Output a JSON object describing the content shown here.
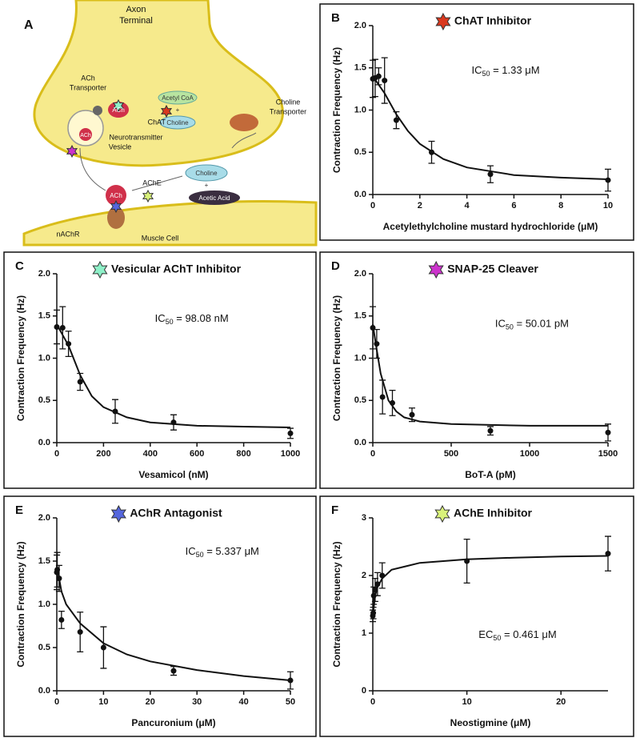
{
  "diagram": {
    "panel_label": "A",
    "labels": [
      "Axon",
      "Terminal",
      "ACh",
      "Transporter",
      "ACh",
      "Acetyl CoA",
      "+",
      "ChAT",
      "Choline",
      "Choline",
      "Transporter",
      "ACh",
      "Neurotransmitter",
      "Vesicle",
      "AChE",
      "Choline",
      "+",
      "Acetic Acid",
      "ACh",
      "nAChR",
      "Muscle Cell"
    ]
  },
  "chart_data": [
    {
      "type": "scatter",
      "panel": "B",
      "title": "ChAT Inhibitor",
      "marker_color": "#d9381e",
      "annotation": {
        "prefix": "IC",
        "sub": "50",
        "suffix": " = 1.33 μM"
      },
      "x_label": "Acetylethylcholine mustard hydrochloride (μM)",
      "y_label": "Contraction Frequency (Hz)",
      "x": [
        0,
        0.1,
        0.25,
        0.5,
        1,
        2.5,
        5,
        10
      ],
      "y": [
        1.37,
        1.38,
        1.4,
        1.35,
        0.88,
        0.5,
        0.24,
        0.17
      ],
      "err": [
        0.22,
        0.22,
        0.1,
        0.27,
        0.1,
        0.13,
        0.1,
        0.13
      ],
      "fit": {
        "x": [
          0,
          0.5,
          1,
          1.5,
          2,
          3,
          4,
          6,
          8,
          10
        ],
        "y": [
          1.4,
          1.2,
          0.95,
          0.75,
          0.6,
          0.42,
          0.32,
          0.23,
          0.2,
          0.18
        ]
      },
      "xlim": [
        0,
        10
      ],
      "xticks": [
        0,
        2,
        4,
        6,
        8,
        10
      ],
      "ylim": [
        0,
        2
      ],
      "yticks": [
        {
          "value": 0,
          "label": "0.0"
        },
        0.5,
        {
          "value": 1,
          "label": "1.0"
        },
        1.5,
        {
          "value": 2,
          "label": "2.0"
        }
      ]
    },
    {
      "type": "scatter",
      "panel": "C",
      "title": "Vesicular AChT Inhibitor",
      "marker_color": "#8ef0c8",
      "annotation": {
        "prefix": "IC",
        "sub": "50",
        "suffix": " = 98.08 nM"
      },
      "x_label": "Vesamicol (nM)",
      "y_label": "Contraction Frequency (Hz)",
      "x": [
        0,
        25,
        50,
        100,
        250,
        500,
        1000
      ],
      "y": [
        1.37,
        1.36,
        1.17,
        0.72,
        0.37,
        0.24,
        0.11
      ],
      "err": [
        0.2,
        0.25,
        0.15,
        0.1,
        0.14,
        0.09,
        0.06
      ],
      "fit": {
        "x": [
          0,
          50,
          100,
          150,
          200,
          300,
          400,
          600,
          800,
          1000
        ],
        "y": [
          1.4,
          1.15,
          0.8,
          0.55,
          0.42,
          0.3,
          0.24,
          0.2,
          0.19,
          0.18
        ]
      },
      "xlim": [
        0,
        1000
      ],
      "xticks": [
        0,
        200,
        400,
        600,
        800,
        1000
      ],
      "ylim": [
        0,
        2
      ],
      "yticks": [
        {
          "value": 0,
          "label": "0.0"
        },
        0.5,
        {
          "value": 1,
          "label": "1.0"
        },
        1.5,
        {
          "value": 2,
          "label": "2.0"
        }
      ]
    },
    {
      "type": "scatter",
      "panel": "D",
      "title": "SNAP-25 Cleaver",
      "marker_color": "#cc33cc",
      "annotation": {
        "prefix": "IC",
        "sub": "50",
        "suffix": " = 50.01 pM"
      },
      "x_label": "BoT-A (pM)",
      "y_label": "Contraction Frequency (Hz)",
      "x": [
        0,
        25,
        62,
        125,
        250,
        750,
        1500
      ],
      "y": [
        1.36,
        1.17,
        0.54,
        0.47,
        0.33,
        0.14,
        0.12
      ],
      "err": [
        0.25,
        0.17,
        0.2,
        0.15,
        0.08,
        0.05,
        0.1
      ],
      "fit": {
        "x": [
          0,
          25,
          50,
          100,
          150,
          200,
          300,
          500,
          1000,
          1500
        ],
        "y": [
          1.4,
          1.1,
          0.82,
          0.5,
          0.37,
          0.3,
          0.25,
          0.22,
          0.2,
          0.2
        ]
      },
      "xlim": [
        0,
        1500
      ],
      "xticks": [
        0,
        500,
        1000,
        1500
      ],
      "ylim": [
        0,
        2
      ],
      "yticks": [
        {
          "value": 0,
          "label": "0.0"
        },
        0.5,
        {
          "value": 1,
          "label": "1.0"
        },
        1.5,
        {
          "value": 2,
          "label": "2.0"
        }
      ]
    },
    {
      "type": "scatter",
      "panel": "E",
      "title": "AChR Antagonist",
      "marker_color": "#5566dd",
      "annotation": {
        "prefix": "IC",
        "sub": "50",
        "suffix": " = 5.337 μM"
      },
      "x_label": "Pancuronium (μM)",
      "y_label": "Contraction Frequency (Hz)",
      "x": [
        0,
        0.1,
        0.5,
        1,
        5,
        10,
        25,
        50
      ],
      "y": [
        1.37,
        1.4,
        1.3,
        0.82,
        0.68,
        0.5,
        0.23,
        0.12
      ],
      "err": [
        0.2,
        0.2,
        0.15,
        0.1,
        0.23,
        0.24,
        0.05,
        0.1
      ],
      "fit": {
        "x": [
          0,
          1,
          2,
          5,
          10,
          15,
          20,
          30,
          40,
          50
        ],
        "y": [
          1.45,
          1.15,
          1.0,
          0.78,
          0.55,
          0.42,
          0.34,
          0.24,
          0.17,
          0.12
        ]
      },
      "xlim": [
        0,
        50
      ],
      "xticks": [
        0,
        10,
        20,
        30,
        40,
        50
      ],
      "ylim": [
        0,
        2
      ],
      "yticks": [
        {
          "value": 0,
          "label": "0.0"
        },
        0.5,
        {
          "value": 1,
          "label": "1.0"
        },
        1.5,
        {
          "value": 2,
          "label": "2.0"
        }
      ]
    },
    {
      "type": "scatter",
      "panel": "F",
      "title": "AChE Inhibitor",
      "marker_color": "#d9f27a",
      "annotation": {
        "prefix": "EC",
        "sub": "50",
        "suffix": " = 0.461 μM"
      },
      "x_label": "Neostigmine (μM)",
      "y_label": "Contraction Frequency (Hz)",
      "x": [
        0,
        0.05,
        0.1,
        0.25,
        0.5,
        1,
        10,
        25
      ],
      "y": [
        1.3,
        1.35,
        1.65,
        1.75,
        1.85,
        2.0,
        2.25,
        2.38
      ],
      "err": [
        0.1,
        0.1,
        0.15,
        0.2,
        0.2,
        0.22,
        0.38,
        0.3
      ],
      "fit": {
        "x": [
          0,
          0.25,
          0.5,
          1,
          2,
          5,
          10,
          15,
          20,
          25
        ],
        "y": [
          1.3,
          1.65,
          1.8,
          1.95,
          2.1,
          2.22,
          2.28,
          2.31,
          2.33,
          2.34
        ]
      },
      "xlim": [
        0,
        25
      ],
      "xticks": [
        0,
        10,
        20
      ],
      "ylim": [
        0,
        3
      ],
      "yticks": [
        0,
        1,
        2,
        3
      ]
    }
  ]
}
